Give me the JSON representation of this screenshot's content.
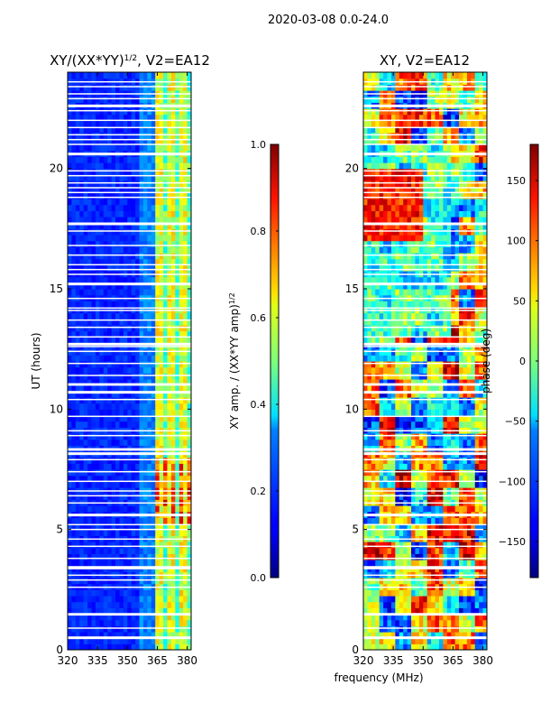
{
  "suptitle": "2020-03-08 0.0-24.0",
  "chart_data": [
    {
      "type": "heatmap",
      "title": "XY/(XX*YY)",
      "title_exponent": "1/2",
      "title_suffix": ", V2=EA12",
      "xlabel": "",
      "ylabel": "UT (hours)",
      "xlim": [
        320,
        382
      ],
      "ylim": [
        0,
        24
      ],
      "xticks": [
        320,
        335,
        350,
        365,
        380
      ],
      "yticks": [
        0,
        5,
        10,
        15,
        20
      ],
      "colorbar": {
        "label": "XY amp. / (XX*YY amp)",
        "label_exponent": "1/2",
        "range": [
          0.0,
          1.0
        ],
        "ticks": [
          "0.0",
          "0.2",
          "0.4",
          "0.6",
          "0.8",
          "1.0"
        ]
      },
      "colormap": "jet"
    },
    {
      "type": "heatmap",
      "title": "XY, V2=EA12",
      "xlabel": "frequency (MHz)",
      "ylabel": "",
      "xlim": [
        320,
        382
      ],
      "ylim": [
        0,
        24
      ],
      "xticks": [
        320,
        335,
        350,
        365,
        380
      ],
      "yticks": [
        0,
        5,
        10,
        15,
        20
      ],
      "colorbar": {
        "label": "phase (deg)",
        "range": [
          -180,
          180
        ],
        "ticks": [
          "−150",
          "−100",
          "−50",
          "0",
          "50",
          "100",
          "150"
        ]
      },
      "colormap": "jet"
    }
  ],
  "gaps_hours": [
    0.5,
    0.9,
    1.45,
    1.5,
    2.6,
    2.9,
    3.1,
    3.4,
    3.45,
    3.8,
    4.3,
    4.6,
    5.0,
    5.2,
    5.6,
    6.1,
    6.4,
    6.6,
    7.0,
    7.4,
    7.9,
    8.15,
    8.3,
    8.35,
    8.9,
    9.1,
    9.7,
    10.4,
    10.7,
    11.0,
    11.05,
    11.4,
    11.9,
    12.4,
    12.6,
    12.7,
    13.0,
    13.4,
    13.7,
    14.1,
    14.2,
    14.6,
    15.2,
    15.6,
    15.8,
    16.0,
    16.4,
    16.8,
    17.4,
    17.7,
    18.8,
    19.0,
    19.2,
    19.4,
    19.7,
    19.9,
    20.6,
    21.0,
    21.2,
    21.4,
    21.7,
    22.0,
    22.4,
    22.6,
    22.9,
    23.1,
    23.4,
    23.6
  ]
}
